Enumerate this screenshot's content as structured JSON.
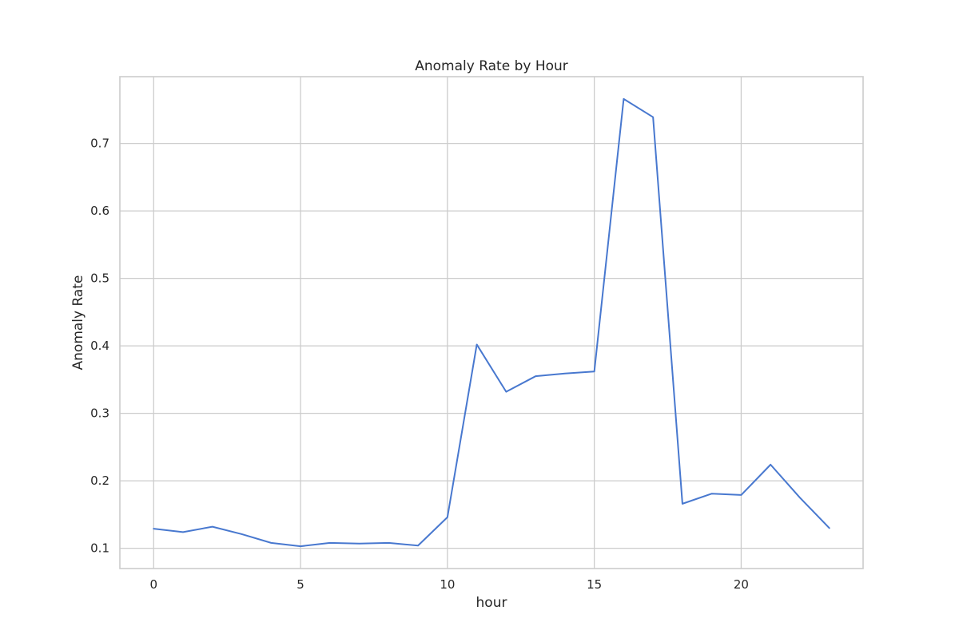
{
  "chart_data": {
    "type": "line",
    "title": "Anomaly Rate by Hour",
    "xlabel": "hour",
    "ylabel": "Anomaly Rate",
    "xlim": [
      -1.15,
      24.15
    ],
    "ylim": [
      0.07,
      0.799
    ],
    "xticks": [
      0,
      5,
      10,
      15,
      20
    ],
    "yticks": [
      0.1,
      0.2,
      0.3,
      0.4,
      0.5,
      0.6,
      0.7
    ],
    "grid": true,
    "x": [
      0,
      1,
      2,
      3,
      4,
      5,
      6,
      7,
      8,
      9,
      10,
      11,
      12,
      13,
      14,
      15,
      16,
      17,
      18,
      19,
      20,
      21,
      22,
      23
    ],
    "series": [
      {
        "color": "#4878cf",
        "values": [
          0.129,
          0.124,
          0.132,
          0.121,
          0.108,
          0.103,
          0.108,
          0.107,
          0.108,
          0.104,
          0.146,
          0.402,
          0.332,
          0.355,
          0.359,
          0.362,
          0.766,
          0.739,
          0.166,
          0.181,
          0.179,
          0.224,
          0.175,
          0.13
        ]
      }
    ]
  }
}
